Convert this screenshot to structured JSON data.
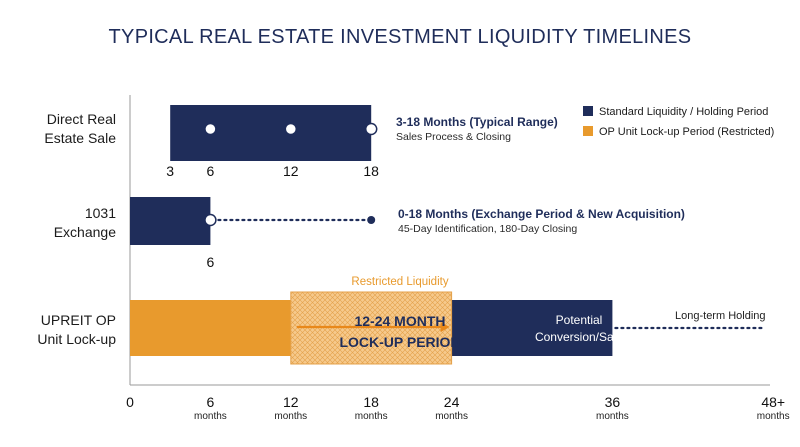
{
  "chart_data": {
    "type": "bar",
    "title": "TYPICAL REAL ESTATE INVESTMENT LIQUIDITY TIMELINES",
    "x_axis": {
      "ticks": [
        {
          "value": 0,
          "label": "0",
          "unit": ""
        },
        {
          "value": 6,
          "label": "6",
          "unit": "months"
        },
        {
          "value": 12,
          "label": "12",
          "unit": "months"
        },
        {
          "value": 18,
          "label": "18",
          "unit": "months"
        },
        {
          "value": 24,
          "label": "24",
          "unit": "months"
        },
        {
          "value": 36,
          "label": "36",
          "unit": "months"
        },
        {
          "value": 48,
          "label": "48+",
          "unit": "months"
        }
      ],
      "xlim": [
        0,
        48
      ]
    },
    "legend": {
      "placement": "top-right",
      "items": [
        {
          "label": "Standard Liquidity / Holding Period",
          "color": "#1f2d5a"
        },
        {
          "label": "OP Unit Lock-up Period (Restricted)",
          "color": "#e89a2d"
        }
      ]
    },
    "categories": [
      "Direct Real Estate Sale",
      "1031 Exchange",
      "UPREIT OP Unit Lock-up"
    ],
    "rows": [
      {
        "label_lines": [
          "Direct Real",
          "Estate Sale"
        ],
        "bar": {
          "start": 3,
          "end": 18,
          "color": "#1f2d5a"
        },
        "points": [
          6,
          12,
          18
        ],
        "row_ticks": [
          3,
          6,
          12,
          18
        ],
        "annotation": {
          "main": "3-18 Months (Typical Range)",
          "sub": "Sales Process & Closing"
        }
      },
      {
        "label_lines": [
          "1031",
          "Exchange"
        ],
        "bar": {
          "start": 0,
          "end": 6,
          "color": "#1f2d5a"
        },
        "points": [
          6
        ],
        "dotted_to": 18,
        "row_ticks": [
          6
        ],
        "annotation": {
          "main": "0-18 Months (Exchange Period & New Acquisition)",
          "sub": "45-Day Identification, 180-Day Closing"
        }
      },
      {
        "label_lines": [
          "UPREIT OP",
          "Unit Lock-up"
        ],
        "segments": [
          {
            "start": 0,
            "end": 24,
            "color": "#e89a2d",
            "kind": "lockup"
          },
          {
            "start": 24,
            "end": 36,
            "color": "#1f2d5a",
            "kind": "holding"
          }
        ],
        "restricted_zone": {
          "start": 12,
          "end": 24,
          "label": "Restricted Liquidity"
        },
        "lockup_label_lines": [
          "12-24 MONTH",
          "LOCK-UP PERIOD"
        ],
        "potential_label_lines": [
          "Potential",
          "Conversion/Sale"
        ],
        "dotted_to": 48,
        "tail_label": "Long-term Holding"
      }
    ]
  }
}
